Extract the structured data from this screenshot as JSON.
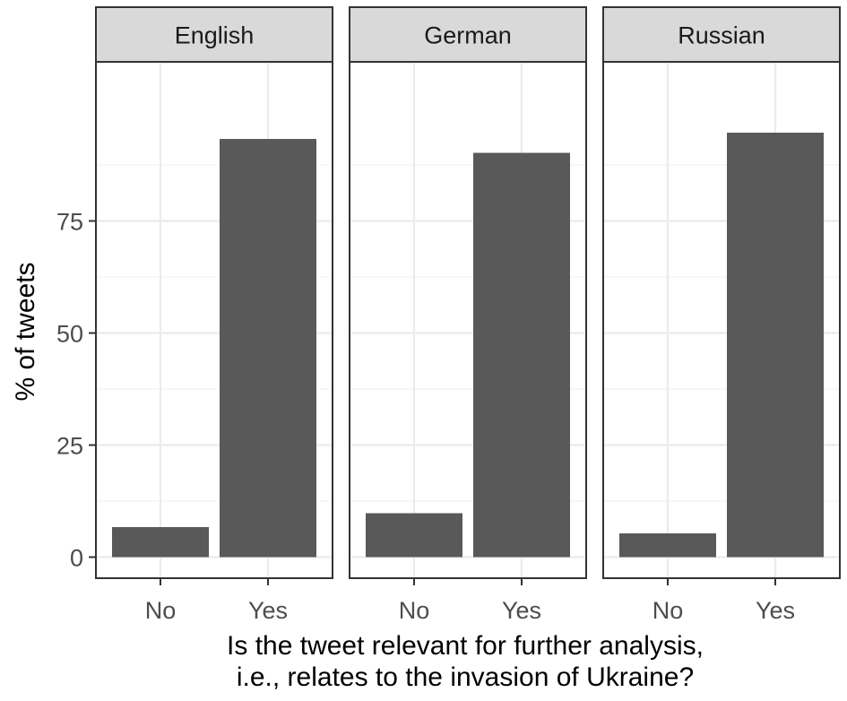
{
  "chart_data": {
    "type": "bar",
    "ylabel": "% of tweets",
    "xlabel": [
      "Is the tweet relevant for further analysis,",
      "i.e., relates to the invasion of Ukraine?"
    ],
    "categories": [
      "No",
      "Yes"
    ],
    "yticks": [
      0,
      25,
      50,
      75
    ],
    "ylim": [
      -4.7,
      110.5
    ],
    "facets": [
      {
        "name": "English",
        "values": [
          6.7,
          93.3
        ]
      },
      {
        "name": "German",
        "values": [
          9.8,
          90.2
        ]
      },
      {
        "name": "Russian",
        "values": [
          5.3,
          94.7
        ]
      }
    ],
    "bar_color": "#595959",
    "grid": true,
    "legend": "none"
  }
}
